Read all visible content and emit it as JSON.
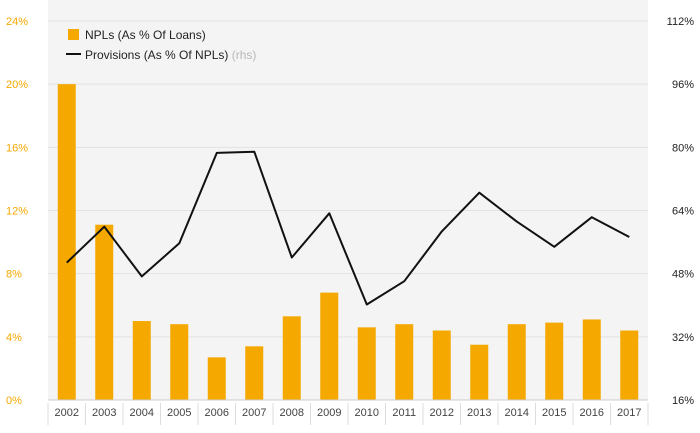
{
  "chart_data": {
    "type": "bar+line",
    "categories": [
      "2002",
      "2003",
      "2004",
      "2005",
      "2006",
      "2007",
      "2008",
      "2009",
      "2010",
      "2011",
      "2012",
      "2013",
      "2014",
      "2015",
      "2016",
      "2017"
    ],
    "series": [
      {
        "name": "NPLs (As % Of Loans)",
        "kind": "bar",
        "axis": "left",
        "color": "#f5a800",
        "values": [
          20.0,
          11.1,
          5.0,
          4.8,
          2.7,
          3.4,
          5.3,
          6.8,
          4.6,
          4.8,
          4.4,
          3.5,
          4.8,
          4.9,
          5.1,
          4.4
        ]
      },
      {
        "name": "Provisions (As % Of NPLs)",
        "legend_suffix": "(rhs)",
        "kind": "line",
        "axis": "right",
        "color": "#111111",
        "values": [
          50.8,
          59.9,
          47.3,
          55.7,
          78.6,
          78.9,
          52.1,
          63.3,
          40.2,
          46.1,
          58.7,
          68.5,
          61.2,
          54.8,
          62.3,
          57.3
        ]
      }
    ],
    "y_left": {
      "min": 0,
      "max": 24,
      "ticks": [
        "0%",
        "4%",
        "8%",
        "12%",
        "16%",
        "20%",
        "24%"
      ]
    },
    "y_right": {
      "min": 16,
      "max": 112,
      "ticks": [
        "16%",
        "32%",
        "48%",
        "64%",
        "80%",
        "96%",
        "112%"
      ]
    },
    "grid": true,
    "legend_position": "top-left"
  }
}
